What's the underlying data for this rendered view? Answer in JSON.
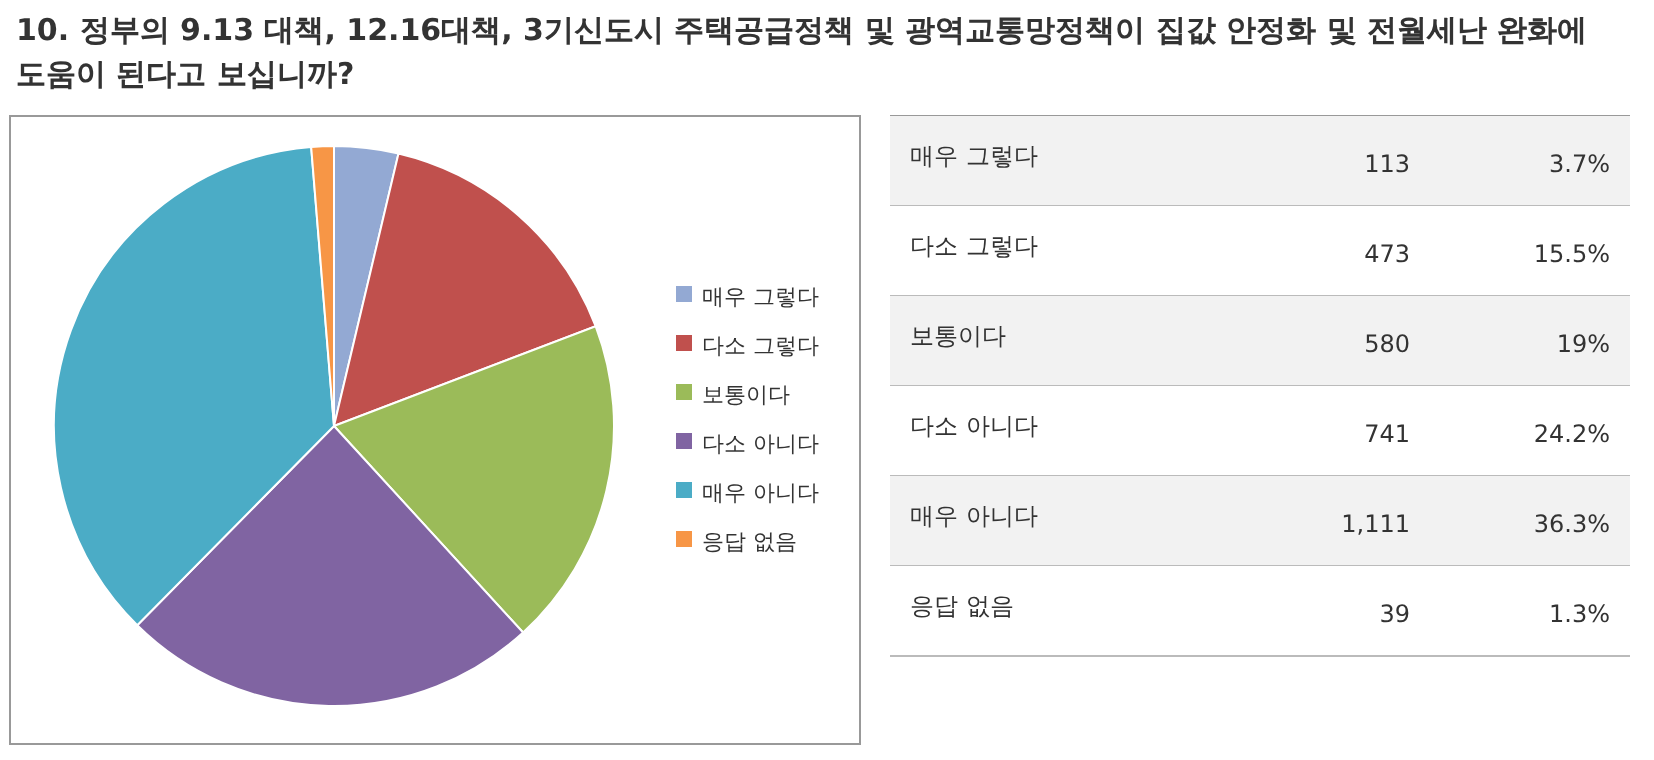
{
  "chart_data": [
    {
      "type": "pie",
      "title": "10. 정부의 9.13 대책, 12.16대책, 3기신도시 주택공급정책 및 광역교통망정책이 집값 안정화 및 전월세난 완화에 도움이 된다고 보십니까?",
      "categories": [
        "매우 그렇다",
        "다소 그렇다",
        "보통이다",
        "다소 아니다",
        "매우 아니다",
        "응답 없음"
      ],
      "values": [
        3.7,
        15.5,
        19,
        24.2,
        36.3,
        1.3
      ],
      "colors": [
        "#93a9d3",
        "#c0504d",
        "#9bbb59",
        "#8064a2",
        "#4bacc6",
        "#f79646"
      ],
      "legend": "right"
    },
    {
      "type": "other",
      "annotations": [
        "매우 그렇다",
        "113",
        "3.7%",
        "다소 그렇다",
        "473",
        "15.5%",
        "보통이다",
        "580",
        "19%",
        "다소 아니다",
        "741",
        "24.2%",
        "매우 아니다",
        "1,111",
        "36.3%",
        "응답 없음",
        "39",
        "1.3%"
      ]
    }
  ]
}
